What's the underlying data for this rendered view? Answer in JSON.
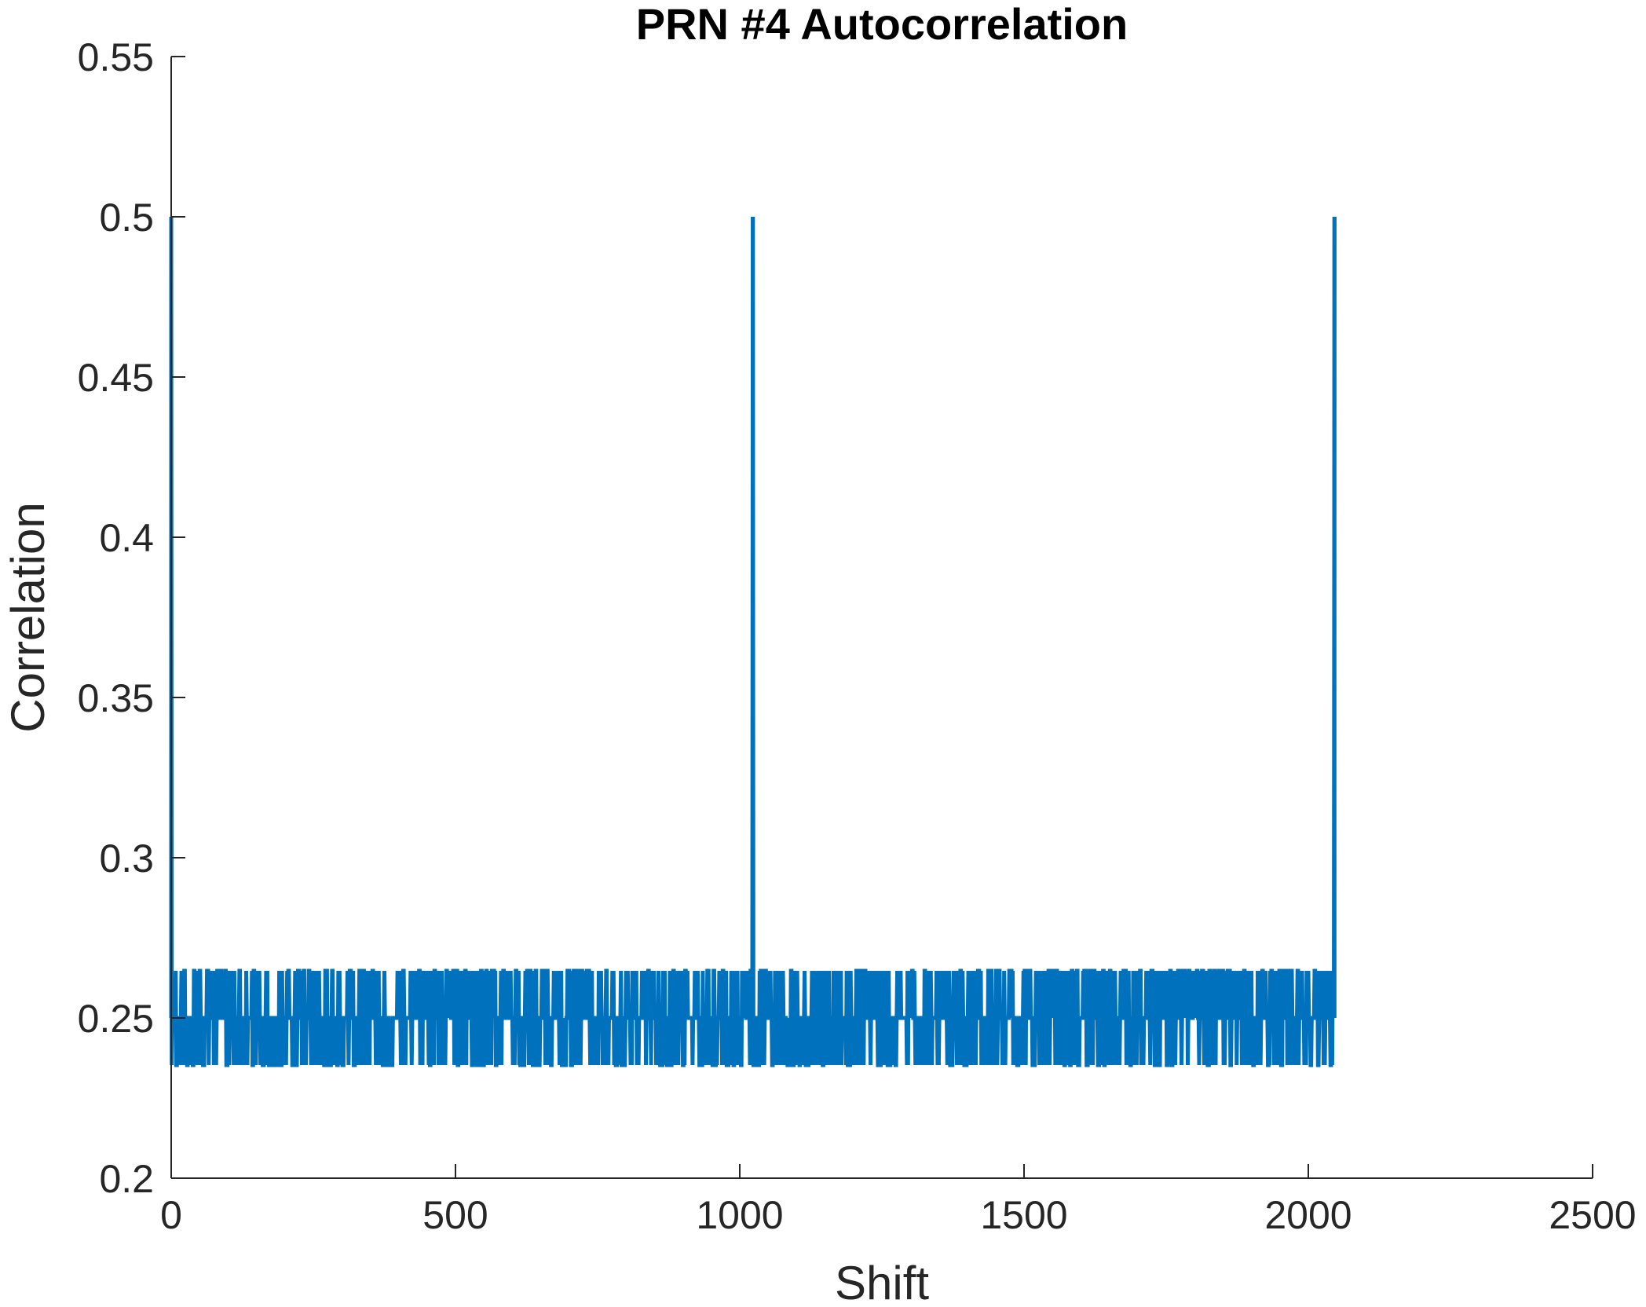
{
  "chart_data": {
    "type": "line",
    "title": "PRN #4 Autocorrelation",
    "xlabel": "Shift",
    "ylabel": "Correlation",
    "xlim": [
      0,
      2500
    ],
    "ylim": [
      0.2,
      0.55
    ],
    "xticks": [
      0,
      500,
      1000,
      1500,
      2000,
      2500
    ],
    "yticks": [
      0.2,
      0.25,
      0.3,
      0.35,
      0.4,
      0.45,
      0.5,
      0.55
    ],
    "xtick_labels": [
      "0",
      "500",
      "1000",
      "1500",
      "2000",
      "2500"
    ],
    "ytick_labels": [
      "0.2",
      "0.25",
      "0.3",
      "0.35",
      "0.4",
      "0.45",
      "0.5",
      "0.55"
    ],
    "grid": false,
    "legend": "none",
    "series": [
      {
        "color": "#0072bd",
        "x_start": 0,
        "x_end": 2046,
        "peaks": [
          {
            "x": 0,
            "y": 0.5
          },
          {
            "x": 1023,
            "y": 0.5
          },
          {
            "x": 2046,
            "y": 0.5
          }
        ],
        "off_peak_levels": [
          0.2353,
          0.25,
          0.2647
        ]
      }
    ]
  }
}
